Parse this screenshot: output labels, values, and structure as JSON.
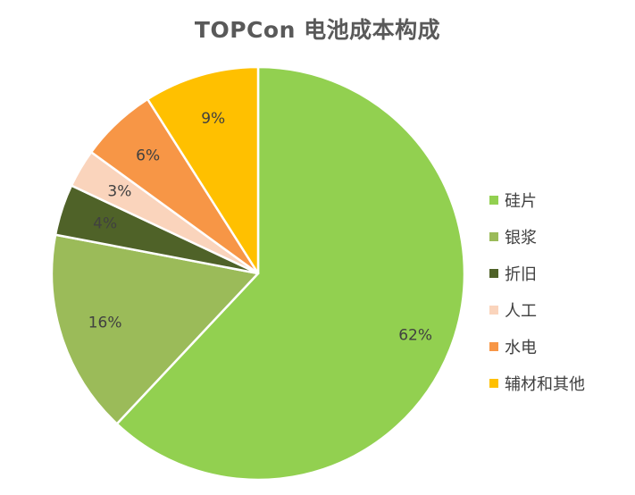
{
  "chart_data": {
    "type": "pie",
    "title": "TOPCon 电池成本构成",
    "start_angle_deg": 0,
    "direction": "clockwise",
    "legend_position": "right",
    "slices": [
      {
        "label": "硅片",
        "value": 62,
        "display": "62%",
        "color": "#92D050"
      },
      {
        "label": "银浆",
        "value": 16,
        "display": "16%",
        "color": "#9BBB59"
      },
      {
        "label": "折旧",
        "value": 4,
        "display": "4%",
        "color": "#4F6228"
      },
      {
        "label": "人工",
        "value": 3,
        "display": "3%",
        "color": "#FAD4BC"
      },
      {
        "label": "水电",
        "value": 6,
        "display": "6%",
        "color": "#F79646"
      },
      {
        "label": "辅材和其他",
        "value": 9,
        "display": "9%",
        "color": "#FFC000"
      }
    ]
  }
}
